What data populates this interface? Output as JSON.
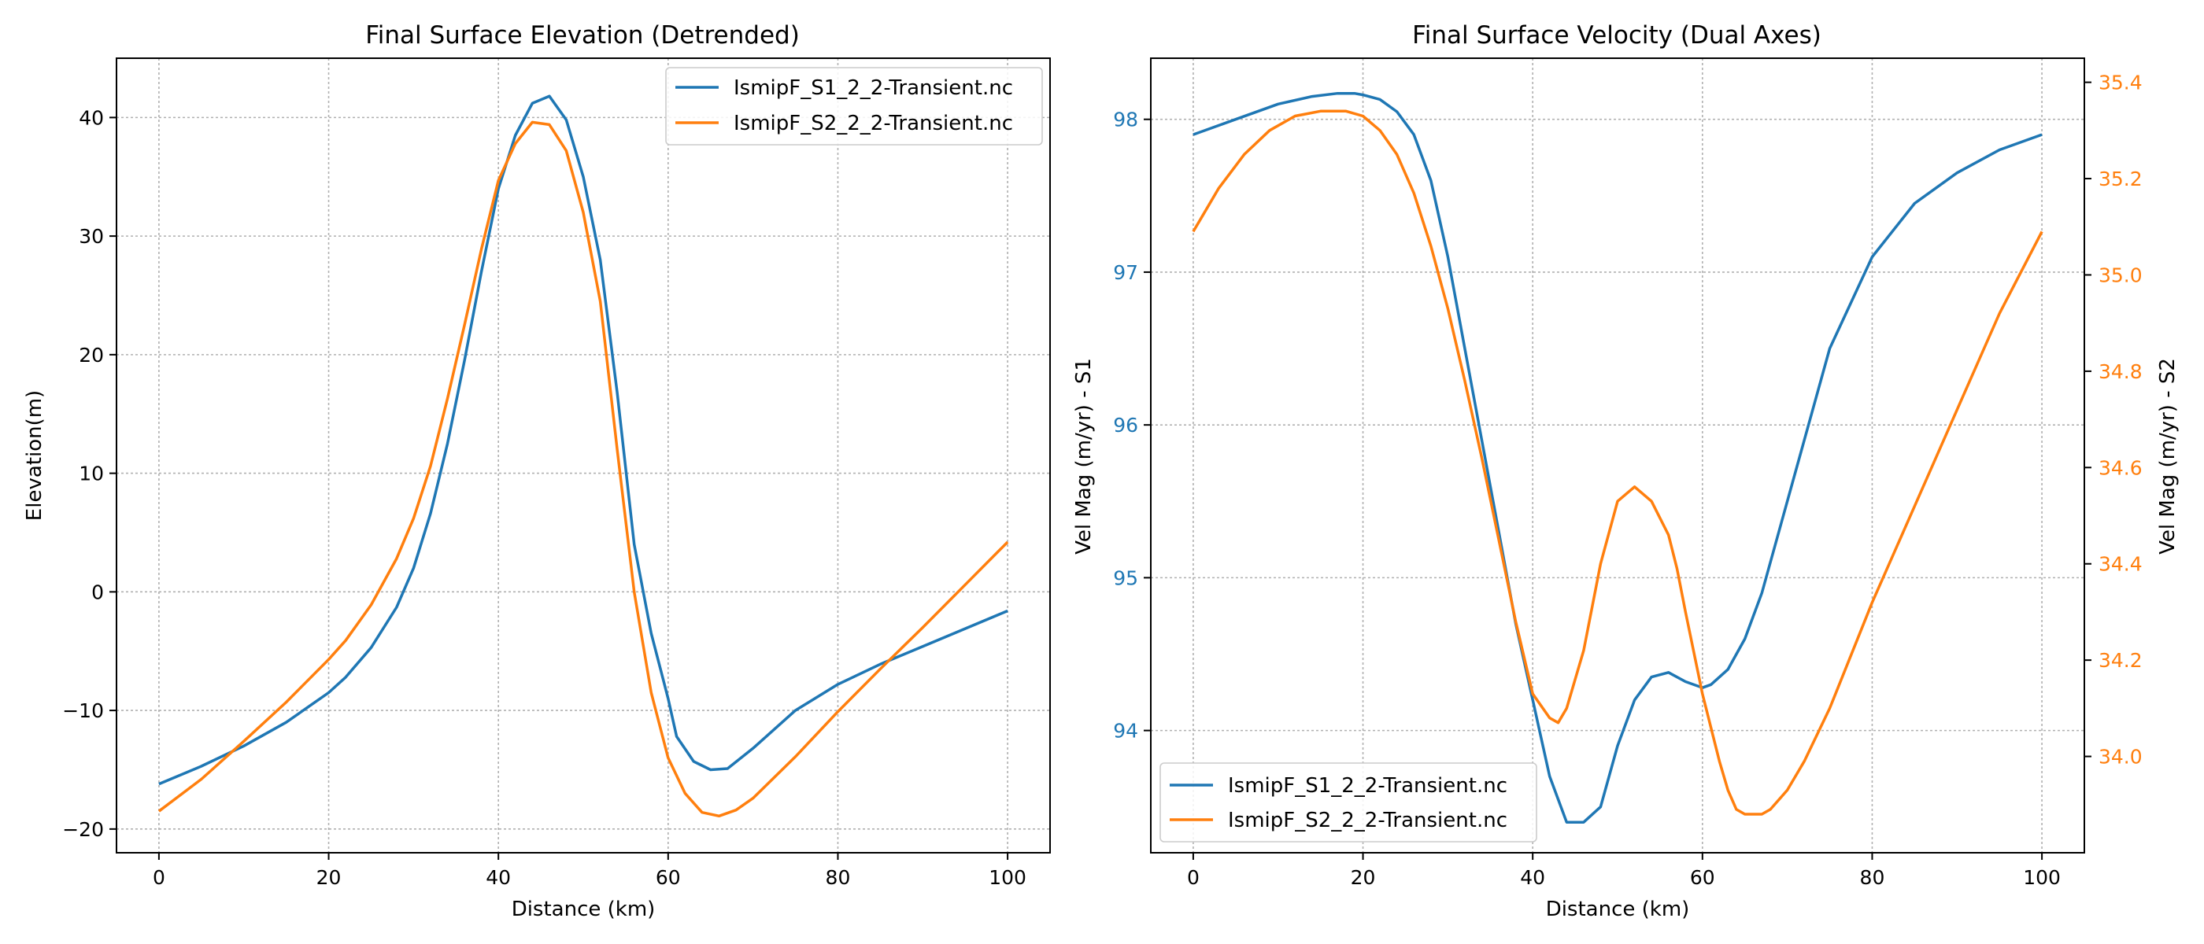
{
  "colors": {
    "s1": "#1f77b4",
    "s2": "#ff7f0e"
  },
  "chart_data": [
    {
      "type": "line",
      "title": "Final Surface Elevation (Detrended)",
      "xlabel": "Distance (km)",
      "ylabel": "Elevation(m)",
      "xlim": [
        -5,
        105
      ],
      "ylim": [
        -22,
        45
      ],
      "xticks": [
        0,
        20,
        40,
        60,
        80,
        100
      ],
      "yticks": [
        -20,
        -10,
        0,
        10,
        20,
        30,
        40
      ],
      "grid": true,
      "legend": "top-right",
      "series": [
        {
          "name": "IsmipF_S1_2_2-Transient.nc",
          "x": [
            0,
            5,
            10,
            15,
            20,
            22,
            25,
            28,
            30,
            32,
            34,
            36,
            38,
            40,
            42,
            44,
            46,
            48,
            50,
            52,
            54,
            56,
            58,
            60,
            61,
            63,
            65,
            67,
            70,
            75,
            80,
            85,
            90,
            95,
            100
          ],
          "y": [
            -16.2,
            -14.7,
            -13.0,
            -11.0,
            -8.5,
            -7.2,
            -4.7,
            -1.3,
            2.0,
            6.6,
            12.5,
            19.5,
            27.0,
            34.0,
            38.5,
            41.2,
            41.8,
            39.8,
            35.0,
            28.0,
            16.8,
            4.0,
            -3.5,
            -9.0,
            -12.2,
            -14.3,
            -15.0,
            -14.9,
            -13.2,
            -10.0,
            -7.8,
            -6.1,
            -4.6,
            -3.1,
            -1.6
          ]
        },
        {
          "name": "IsmipF_S2_2_2-Transient.nc",
          "x": [
            0,
            5,
            10,
            15,
            20,
            22,
            25,
            28,
            30,
            32,
            34,
            36,
            38,
            40,
            42,
            44,
            46,
            48,
            50,
            52,
            54,
            56,
            58,
            60,
            62,
            64,
            66,
            68,
            70,
            75,
            80,
            85,
            90,
            95,
            100
          ],
          "y": [
            -18.5,
            -15.8,
            -12.6,
            -9.3,
            -5.7,
            -4.1,
            -1.1,
            2.8,
            6.2,
            10.6,
            16.3,
            22.5,
            28.9,
            34.7,
            37.8,
            39.6,
            39.4,
            37.2,
            32.0,
            24.5,
            12.0,
            0.0,
            -8.5,
            -14.0,
            -17.0,
            -18.6,
            -18.9,
            -18.4,
            -17.4,
            -13.9,
            -10.1,
            -6.5,
            -3.0,
            0.6,
            4.2
          ]
        }
      ]
    },
    {
      "type": "line",
      "title": "Final Surface Velocity (Dual Axes)",
      "xlabel": "Distance (km)",
      "ylabel_left": "Vel Mag (m/yr) - S1",
      "ylabel_right": "Vel Mag (m/yr) - S2",
      "xlim": [
        -5,
        105
      ],
      "ylim_left": [
        93.2,
        98.4
      ],
      "ylim_right": [
        33.8,
        35.45
      ],
      "xticks": [
        0,
        20,
        40,
        60,
        80,
        100
      ],
      "yticks_left": [
        94,
        95,
        96,
        97,
        98
      ],
      "yticks_right": [
        "34.0",
        "34.2",
        "34.4",
        "34.6",
        "34.8",
        "35.0",
        "35.2",
        "35.4"
      ],
      "grid": true,
      "legend": "lower-left",
      "series": [
        {
          "name": "IsmipF_S1_2_2-Transient.nc",
          "axis": "left",
          "x": [
            0,
            5,
            10,
            14,
            17,
            19,
            20,
            22,
            24,
            26,
            28,
            30,
            32,
            34,
            36,
            38,
            40,
            42,
            44,
            46,
            48,
            50,
            52,
            54,
            56,
            58,
            60,
            61,
            63,
            65,
            67,
            70,
            75,
            80,
            85,
            90,
            95,
            100
          ],
          "y": [
            97.9,
            98.0,
            98.1,
            98.15,
            98.17,
            98.17,
            98.16,
            98.13,
            98.05,
            97.9,
            97.6,
            97.1,
            96.5,
            95.9,
            95.3,
            94.7,
            94.2,
            93.7,
            93.4,
            93.4,
            93.5,
            93.9,
            94.2,
            94.35,
            94.38,
            94.32,
            94.28,
            94.3,
            94.4,
            94.6,
            94.9,
            95.5,
            96.5,
            97.1,
            97.45,
            97.65,
            97.8,
            97.9
          ]
        },
        {
          "name": "IsmipF_S2_2_2-Transient.nc",
          "axis": "right",
          "x": [
            0,
            3,
            6,
            9,
            12,
            15,
            18,
            20,
            22,
            24,
            26,
            28,
            30,
            32,
            34,
            36,
            38,
            40,
            42,
            43,
            44,
            46,
            48,
            50,
            52,
            54,
            56,
            57,
            58,
            60,
            62,
            63,
            64,
            65,
            66,
            67,
            68,
            70,
            72,
            75,
            80,
            85,
            90,
            95,
            100
          ],
          "y": [
            35.09,
            35.18,
            35.25,
            35.3,
            35.33,
            35.34,
            35.34,
            35.33,
            35.3,
            35.25,
            35.17,
            35.06,
            34.93,
            34.78,
            34.62,
            34.45,
            34.28,
            34.13,
            34.08,
            34.07,
            34.1,
            34.22,
            34.4,
            34.53,
            34.56,
            34.53,
            34.46,
            34.39,
            34.3,
            34.13,
            33.99,
            33.93,
            33.89,
            33.88,
            33.88,
            33.88,
            33.89,
            33.93,
            33.99,
            34.1,
            34.32,
            34.52,
            34.72,
            34.92,
            35.09
          ]
        }
      ]
    }
  ]
}
